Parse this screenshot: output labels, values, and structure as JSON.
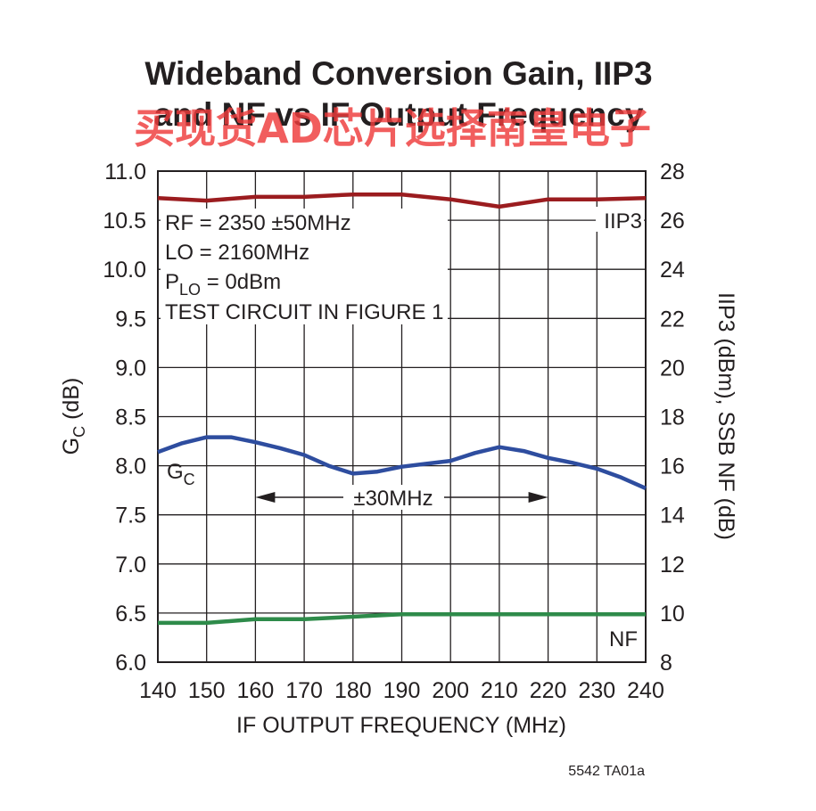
{
  "chart_data": {
    "type": "line",
    "title_line1": "Wideband Conversion Gain, IIP3",
    "title_line2": "and NF vs IF Output Frequency",
    "xlabel": "IF OUTPUT FREQUENCY (MHz)",
    "ylabel_left_main": "G",
    "ylabel_left_sub": "C",
    "ylabel_left_unit": " (dB)",
    "ylabel_right": "IIP3 (dBm), SSB NF (dB)",
    "xlim": [
      140,
      240
    ],
    "ylim_left": [
      6.0,
      11.0
    ],
    "ylim_right": [
      8,
      28
    ],
    "x_ticks": [
      "140",
      "150",
      "160",
      "170",
      "180",
      "190",
      "200",
      "210",
      "220",
      "230",
      "240"
    ],
    "y_left_ticks": [
      "11.0",
      "10.5",
      "10.0",
      "9.5",
      "9.0",
      "8.5",
      "8.0",
      "7.5",
      "7.0",
      "6.5",
      "6.0"
    ],
    "y_right_ticks": [
      "28",
      "26",
      "24",
      "22",
      "20",
      "18",
      "16",
      "14",
      "12",
      "10",
      "8"
    ],
    "grid": true,
    "annotations": {
      "rf": "RF = 2350 ±50MHz",
      "lo": "LO = 2160MHz",
      "plo_main": "P",
      "plo_sub": "LO",
      "plo_rest": " = 0dBm",
      "test": "TEST CIRCUIT IN FIGURE 1",
      "span": "±30MHz",
      "span_from": 160,
      "span_to": 220
    },
    "series": [
      {
        "name": "IIP3",
        "axis": "right",
        "color": "#9b1c1f",
        "x": [
          140,
          150,
          160,
          170,
          180,
          190,
          200,
          210,
          220,
          230,
          240
        ],
        "values": [
          26.9,
          26.8,
          26.95,
          26.95,
          27.05,
          27.05,
          26.85,
          26.55,
          26.85,
          26.85,
          26.9
        ]
      },
      {
        "name": "G",
        "name_sub": "C",
        "axis": "left",
        "color": "#2e4d9f",
        "x": [
          140,
          145,
          150,
          155,
          160,
          165,
          170,
          175,
          180,
          185,
          190,
          195,
          200,
          205,
          210,
          215,
          220,
          225,
          230,
          235,
          240
        ],
        "values": [
          8.14,
          8.23,
          8.29,
          8.29,
          8.24,
          8.18,
          8.11,
          8.0,
          7.92,
          7.94,
          7.99,
          8.02,
          8.05,
          8.13,
          8.19,
          8.15,
          8.08,
          8.03,
          7.97,
          7.88,
          7.77
        ]
      },
      {
        "name": "NF",
        "axis": "right",
        "color": "#2e8b4a",
        "x": [
          140,
          150,
          160,
          170,
          180,
          190,
          200,
          210,
          220,
          230,
          240
        ],
        "values": [
          9.6,
          9.6,
          9.75,
          9.75,
          9.85,
          9.95,
          9.95,
          9.95,
          9.95,
          9.95,
          9.95
        ]
      }
    ]
  },
  "footer": {
    "code": "5542 TA01a"
  },
  "watermark": {
    "text": "买现货AD芯片选择南皇电子",
    "color": "#ee3b3b"
  }
}
